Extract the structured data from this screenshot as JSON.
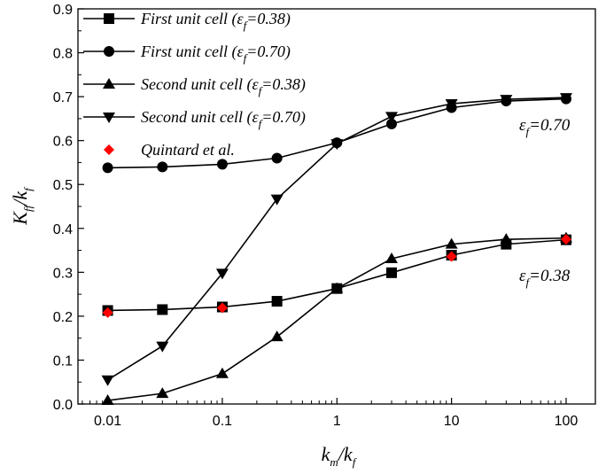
{
  "chart_data": {
    "type": "line",
    "xscale": "log",
    "xlim": [
      0.0055,
      180
    ],
    "ylim": [
      0,
      0.9
    ],
    "x_ticks": [
      {
        "v": 0.01,
        "label": "0.01"
      },
      {
        "v": 0.1,
        "label": "0.1"
      },
      {
        "v": 1,
        "label": "1"
      },
      {
        "v": 10,
        "label": "10"
      },
      {
        "v": 100,
        "label": "100"
      }
    ],
    "y_ticks": [
      {
        "v": 0.0,
        "label": "0.0"
      },
      {
        "v": 0.1,
        "label": "0.1"
      },
      {
        "v": 0.2,
        "label": "0.2"
      },
      {
        "v": 0.3,
        "label": "0.3"
      },
      {
        "v": 0.4,
        "label": "0.4"
      },
      {
        "v": 0.5,
        "label": "0.5"
      },
      {
        "v": 0.6,
        "label": "0.6"
      },
      {
        "v": 0.7,
        "label": "0.7"
      },
      {
        "v": 0.8,
        "label": "0.8"
      },
      {
        "v": 0.9,
        "label": "0.9"
      }
    ],
    "xlabel": {
      "main": "k",
      "sub1": "m",
      "mid": "/k",
      "sub2": "f"
    },
    "ylabel": {
      "main": "K",
      "sub1": "ff",
      "mid": "/k",
      "sub2": "f"
    },
    "legend_position": "top-left",
    "series": [
      {
        "name_prefix": "First unit cell (",
        "name_sym": "ε",
        "name_sub": "f",
        "name_suffix": "=0.38)",
        "marker": "square",
        "color": "#000000",
        "x": [
          0.01,
          0.03,
          0.1,
          0.3,
          1,
          3,
          10,
          30,
          100
        ],
        "y": [
          0.213,
          0.215,
          0.221,
          0.234,
          0.263,
          0.299,
          0.339,
          0.364,
          0.374
        ]
      },
      {
        "name_prefix": "First unit cell (",
        "name_sym": "ε",
        "name_sub": "f",
        "name_suffix": "=0.70)",
        "marker": "circle",
        "color": "#000000",
        "x": [
          0.01,
          0.03,
          0.1,
          0.3,
          1,
          3,
          10,
          30,
          100
        ],
        "y": [
          0.538,
          0.54,
          0.546,
          0.56,
          0.595,
          0.638,
          0.675,
          0.69,
          0.695
        ]
      },
      {
        "name_prefix": "Second unit cell (",
        "name_sym": "ε",
        "name_sub": "f",
        "name_suffix": "=0.38)",
        "marker": "triangle-up",
        "color": "#000000",
        "x": [
          0.01,
          0.03,
          0.1,
          0.3,
          1,
          3,
          10,
          30,
          100
        ],
        "y": [
          0.008,
          0.024,
          0.069,
          0.153,
          0.263,
          0.331,
          0.364,
          0.375,
          0.378
        ]
      },
      {
        "name_prefix": "Second unit cell (",
        "name_sym": "ε",
        "name_sub": "f",
        "name_suffix": "=0.70)",
        "marker": "triangle-down",
        "color": "#000000",
        "x": [
          0.01,
          0.03,
          0.1,
          0.3,
          1,
          3,
          10,
          30,
          100
        ],
        "y": [
          0.055,
          0.132,
          0.298,
          0.467,
          0.593,
          0.655,
          0.684,
          0.694,
          0.698
        ]
      },
      {
        "name_prefix": "Quintard et al.",
        "name_sym": "",
        "name_sub": "",
        "name_suffix": "",
        "marker": "diamond",
        "color": "#ff0000",
        "line": false,
        "x": [
          0.01,
          0.1,
          10,
          100
        ],
        "y": [
          0.208,
          0.219,
          0.336,
          0.375
        ]
      }
    ],
    "annotations": [
      {
        "sym": "ε",
        "sub": "f",
        "text": "=0.70"
      },
      {
        "sym": "ε",
        "sub": "f",
        "text": "=0.38"
      }
    ]
  }
}
